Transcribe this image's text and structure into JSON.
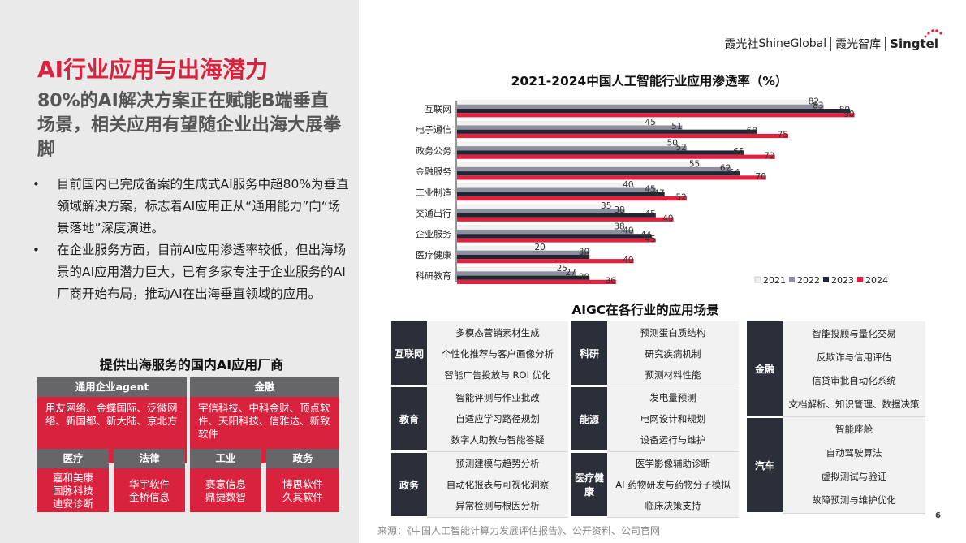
{
  "left": {
    "title": "AI行业应用与出海潜力",
    "subtitle": "80%的AI解决方案正在赋能B端垂直场景，相关应用有望随企业出海大展拳脚",
    "bullets": [
      "目前国内已完成备案的生成式AI服务中超80%为垂直领域解决方案，标志着AI应用正从“通用能力”向“场景落地”深度演进。",
      "在企业服务方面，目前AI应用渗透率较低，但出海场景的AI应用潜力巨大，已有多家专注于企业服务的AI厂商开始布局，推动AI在出海垂直领域的应用。"
    ],
    "bullet_symbol": "•",
    "vendors_title": "提供出海服务的国内AI应用厂商",
    "vendors": [
      {
        "head": "通用企业agent",
        "body": "用友网络、金蝶国际、泛微网络、新国都、新大陆、京北方"
      },
      {
        "head": "金融",
        "body": "宇信科技、中科金财、顶点软件、天阳科技、信雅达、新致软件"
      },
      {
        "head": "医疗",
        "lines": [
          "嘉和美康",
          "国脉科技",
          "迪安诊断"
        ]
      },
      {
        "head": "法律",
        "lines": [
          "华宇软件",
          "金桥信息"
        ]
      },
      {
        "head": "工业",
        "lines": [
          "赛意信息",
          "鼎捷数智"
        ]
      },
      {
        "head": "政务",
        "lines": [
          "博思软件",
          "久其软件"
        ]
      }
    ]
  },
  "logo": {
    "part1": "霞光社",
    "part2": "ShineGlobal",
    "part3": "霞光智库",
    "part4": "Singtel"
  },
  "chart_title": "2021-2024中国人工智能行业应用渗透率（%）",
  "chart_data": {
    "type": "bar",
    "orientation": "horizontal",
    "title": "2021-2024中国人工智能行业应用渗透率（%）",
    "categories": [
      "互联网",
      "电子通信",
      "政务公务",
      "金融服务",
      "工业制造",
      "交通出行",
      "企业服务",
      "医疗健康",
      "科研教育"
    ],
    "series": [
      {
        "name": "2021",
        "color": "#f2f2f2",
        "values": [
          82,
          45,
          50,
          55,
          40,
          35,
          38,
          20,
          25
        ]
      },
      {
        "name": "2022",
        "color": "#8d8f9c",
        "values": [
          83,
          51,
          52,
          62,
          45,
          38,
          40,
          30,
          27
        ]
      },
      {
        "name": "2023",
        "color": "#1f2533",
        "values": [
          89,
          68,
          65,
          64,
          47,
          45,
          44,
          30,
          30
        ]
      },
      {
        "name": "2024",
        "color": "#e0223e",
        "values": [
          90,
          75,
          72,
          70,
          52,
          49,
          45,
          40,
          36
        ]
      }
    ],
    "xlim": [
      0,
      100
    ],
    "grid": false,
    "legend": "bottom-right"
  },
  "aigc_title": "AIGC在各行业的应用场景",
  "applications": {
    "col1": [
      {
        "label": "互联网",
        "items": [
          "多模态营销素材生成",
          "个性化推荐与客户画像分析",
          "智能广告投放与 ROI 优化"
        ]
      },
      {
        "label": "教育",
        "items": [
          "智能评测与作业批改",
          "自适应学习路径规划",
          "数字人助教与智能答疑"
        ]
      },
      {
        "label": "政务",
        "items": [
          "预测建模与趋势分析",
          "自动化报表与可视化洞察",
          "异常检测与根因分析"
        ]
      }
    ],
    "col2": [
      {
        "label": "科研",
        "items": [
          "预测蛋白质结构",
          "研究疾病机制",
          "预测材料性能"
        ]
      },
      {
        "label": "能源",
        "items": [
          "发电量预测",
          "电网设计和规划",
          "设备运行与维护"
        ]
      },
      {
        "label": "医疗健康",
        "items": [
          "医学影像辅助诊断",
          "AI 药物研发与药物分子模拟",
          "临床决策支持"
        ]
      }
    ],
    "col3": [
      {
        "label": "金融",
        "items": [
          "智能投顾与量化交易",
          "反欺诈与信用评估",
          "信贷审批自动化系统",
          "文档解析、知识管理、数据决策"
        ]
      },
      {
        "label": "汽车",
        "items": [
          "智能座舱",
          "自动驾驶算法",
          "虚拟测试与验证",
          "故障预测与维护优化"
        ]
      }
    ]
  },
  "source": "来源：《中国人工智能计算力发展评估报告》、公开资料、公司官网",
  "page_number": "6"
}
